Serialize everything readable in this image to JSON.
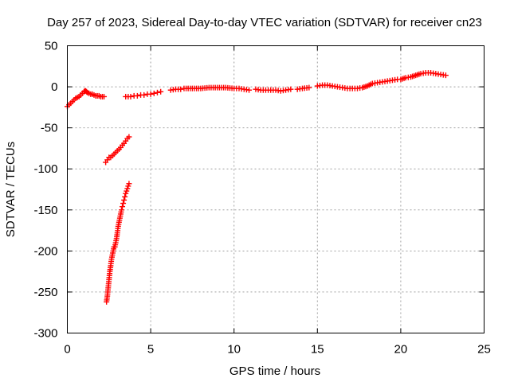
{
  "chart_data": {
    "type": "scatter",
    "title": "Day 257 of 2023, Sidereal Day-to-day VTEC variation (SDTVAR) for receiver cn23",
    "xlabel": "GPS time / hours",
    "ylabel": "SDTVAR / TECUs",
    "xlim": [
      0,
      25
    ],
    "ylim": [
      -300,
      50
    ],
    "xticks": [
      0,
      5,
      10,
      15,
      20,
      25
    ],
    "yticks": [
      50,
      0,
      -50,
      -100,
      -150,
      -200,
      -250,
      -300
    ],
    "xtick_labels": [
      "0",
      "5",
      "10",
      "15",
      "20",
      "25"
    ],
    "ytick_labels": [
      "50",
      "0",
      "-50",
      "-100",
      "-150",
      "-200",
      "-250",
      "-300"
    ],
    "grid": true,
    "marker": "+",
    "color": "#ff0000",
    "series": [
      {
        "name": "SDTVAR",
        "segments": [
          {
            "x": [
              0.0,
              0.1,
              0.2,
              0.3,
              0.4,
              0.5,
              0.6,
              0.7,
              0.8,
              0.9,
              1.0,
              1.05,
              1.1,
              1.15,
              1.2,
              1.3,
              1.4,
              1.5
            ],
            "y": [
              -24,
              -22,
              -20,
              -18,
              -16,
              -14,
              -13,
              -12,
              -10,
              -8,
              -6,
              -5,
              -5,
              -6,
              -7,
              -8,
              -9,
              -9
            ]
          },
          {
            "x": [
              1.6,
              1.7,
              1.8,
              1.9,
              2.0,
              2.1,
              2.2
            ],
            "y": [
              -10,
              -11,
              -11,
              -11,
              -12,
              -12,
              -12
            ]
          },
          {
            "x": [
              3.5,
              3.8,
              4.0,
              4.2,
              4.4,
              4.6,
              4.8,
              5.0,
              5.2,
              5.4,
              5.6
            ],
            "y": [
              -12,
              -12,
              -11,
              -11,
              -10,
              -10,
              -9,
              -9,
              -8,
              -7,
              -6
            ]
          },
          {
            "x": [
              6.2,
              6.5,
              6.8,
              7.0,
              7.5,
              8.0,
              8.5,
              9.0,
              9.5,
              10.0,
              10.3,
              10.6,
              10.9
            ],
            "y": [
              -4,
              -3,
              -3,
              -2,
              -2,
              -2,
              -1,
              -1,
              -1,
              -2,
              -2,
              -3,
              -4
            ]
          },
          {
            "x": [
              11.3,
              11.6,
              11.9,
              12.2,
              12.5,
              12.8,
              13.1,
              13.4
            ],
            "y": [
              -3,
              -4,
              -4,
              -4,
              -4,
              -5,
              -4,
              -3
            ]
          },
          {
            "x": [
              13.8,
              14.1,
              14.5
            ],
            "y": [
              -3,
              -2,
              -1
            ]
          },
          {
            "x": [
              15.0,
              15.3,
              15.6,
              15.9,
              16.2,
              16.5,
              16.8,
              17.1,
              17.4,
              17.7,
              18.0,
              18.3,
              18.6,
              18.9,
              19.2,
              19.5,
              19.8
            ],
            "y": [
              1,
              2,
              2,
              1,
              0,
              -1,
              -2,
              -2,
              -2,
              -1,
              1,
              4,
              5,
              6,
              7,
              8,
              9
            ]
          },
          {
            "x": [
              20.0,
              20.3,
              20.6,
              20.9,
              21.2,
              21.5,
              21.8,
              22.1,
              22.4,
              22.7
            ],
            "y": [
              9,
              11,
              12,
              14,
              16,
              17,
              17,
              16,
              15,
              14
            ]
          },
          {
            "x": [
              2.3,
              2.4,
              2.5,
              2.6,
              2.7,
              2.8,
              2.9,
              3.0,
              3.1,
              3.2,
              3.3,
              3.4,
              3.5,
              3.6,
              3.7
            ],
            "y": [
              -92,
              -89,
              -86,
              -86,
              -84,
              -82,
              -80,
              -78,
              -76,
              -74,
              -71,
              -69,
              -66,
              -63,
              -61
            ]
          },
          {
            "x": [
              2.35,
              2.4,
              2.45,
              2.5,
              2.55,
              2.6,
              2.65,
              2.7,
              2.75,
              2.8,
              2.85,
              2.9,
              2.95,
              3.0,
              3.05,
              3.1,
              3.15,
              3.2,
              3.25,
              3.3,
              3.35,
              3.4,
              3.45,
              3.5,
              3.55,
              3.6,
              3.65,
              3.7
            ],
            "y": [
              -262,
              -255,
              -245,
              -235,
              -225,
              -218,
              -210,
              -205,
              -200,
              -195,
              -195,
              -190,
              -185,
              -178,
              -170,
              -165,
              -160,
              -155,
              -150,
              -146,
              -142,
              -138,
              -134,
              -130,
              -127,
              -124,
              -121,
              -118
            ]
          }
        ]
      }
    ]
  }
}
